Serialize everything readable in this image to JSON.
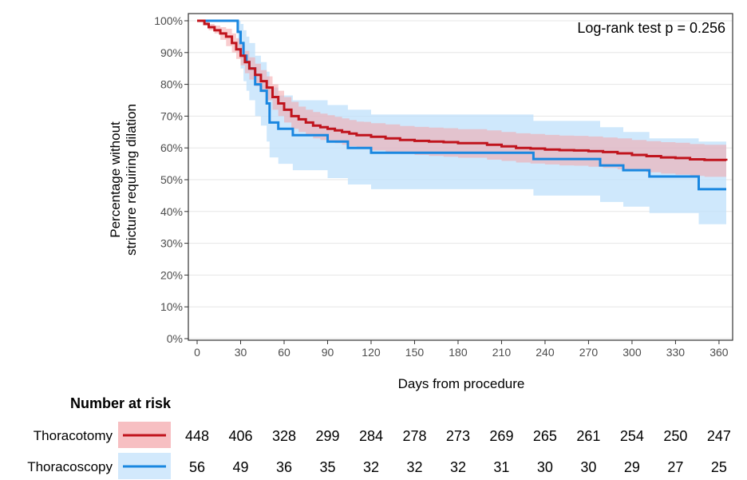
{
  "chart_data": {
    "type": "line",
    "subtype": "kaplan-meier",
    "xlabel": "Days from procedure",
    "ylabel_lines": [
      "Percentage without",
      "stricture requiring dilation"
    ],
    "annotation": "Log-rank test p = 0.256",
    "x_ticks": [
      "0",
      "30",
      "60",
      "90",
      "120",
      "150",
      "180",
      "210",
      "240",
      "270",
      "300",
      "330",
      "360"
    ],
    "y_ticks": [
      "0%",
      "10%",
      "20%",
      "30%",
      "40%",
      "50%",
      "60%",
      "70%",
      "80%",
      "90%",
      "100%"
    ],
    "xlim": [
      0,
      365
    ],
    "ylim": [
      0,
      100
    ],
    "grid": true,
    "series": [
      {
        "name": "Thoracotomy",
        "color": "#c0141d",
        "band_color": "#f4a4a8",
        "x": [
          0,
          5,
          8,
          12,
          16,
          20,
          24,
          27,
          30,
          33,
          36,
          40,
          44,
          48,
          52,
          56,
          60,
          65,
          70,
          75,
          80,
          85,
          90,
          95,
          100,
          105,
          110,
          115,
          120,
          130,
          140,
          150,
          160,
          170,
          180,
          200,
          210,
          220,
          230,
          240,
          250,
          260,
          270,
          280,
          290,
          300,
          310,
          320,
          330,
          340,
          350,
          365
        ],
        "y": [
          100,
          99,
          98,
          97,
          96,
          95,
          93,
          91,
          89,
          87,
          85,
          83,
          81,
          79,
          76,
          74,
          72,
          70,
          69,
          68,
          67,
          66.5,
          66,
          65.5,
          65,
          64.5,
          64,
          64,
          63.5,
          63,
          62.5,
          62.2,
          62,
          61.8,
          61.5,
          61,
          60.5,
          60,
          59.8,
          59.5,
          59.3,
          59.2,
          59,
          58.7,
          58.3,
          57.8,
          57.4,
          57,
          56.8,
          56.4,
          56.2,
          56
        ],
        "lower": [
          100,
          99,
          97,
          96,
          94,
          92,
          90,
          88,
          86,
          83.5,
          81.5,
          79.5,
          77.5,
          75,
          72,
          70,
          68,
          66,
          65,
          64,
          63,
          62.5,
          62,
          61.5,
          61,
          60.5,
          60,
          59.8,
          59.2,
          58.6,
          58.1,
          57.8,
          57.5,
          57.2,
          56.9,
          56.3,
          55.9,
          55.4,
          55.1,
          54.8,
          54.5,
          54.4,
          54.1,
          53.7,
          53.3,
          52.8,
          52.3,
          51.9,
          51.6,
          51.2,
          50.9,
          50.7
        ],
        "upper": [
          100,
          100,
          99,
          98.5,
          98,
          97.5,
          96,
          94.5,
          92.5,
          90.5,
          88.5,
          86.5,
          84.5,
          82.5,
          80,
          78,
          76,
          74.5,
          73,
          72,
          71.3,
          70.8,
          70.3,
          69.8,
          69.3,
          68.8,
          68.3,
          68.2,
          67.8,
          67.4,
          66.9,
          66.6,
          66.4,
          66.2,
          65.9,
          65.5,
          65,
          64.6,
          64.4,
          64.1,
          63.9,
          63.8,
          63.6,
          63.3,
          63,
          62.5,
          62.1,
          61.8,
          61.6,
          61.2,
          61,
          60.8
        ],
        "at_risk": [
          448,
          406,
          328,
          299,
          284,
          278,
          273,
          269,
          265,
          261,
          254,
          250,
          247
        ]
      },
      {
        "name": "Thoracoscopy",
        "color": "#1a87e0",
        "band_color": "#bfe0fb",
        "x": [
          0,
          18,
          28,
          30,
          32,
          34,
          36,
          40,
          44,
          48,
          50,
          56,
          66,
          90,
          104,
          120,
          210,
          232,
          278,
          294,
          312,
          346,
          365
        ],
        "y": [
          100,
          100,
          96.5,
          93,
          89,
          87,
          85,
          80,
          78,
          74,
          68,
          66,
          64,
          62,
          60,
          58.5,
          58.5,
          56.5,
          54.5,
          53,
          51,
          47,
          47
        ],
        "lower": [
          100,
          100,
          90,
          85,
          81,
          78,
          75,
          70,
          67,
          62,
          57,
          55,
          53,
          50.5,
          48.5,
          47,
          47,
          45,
          43,
          41.5,
          39.5,
          36,
          36
        ],
        "upper": [
          100,
          100,
          100,
          99,
          97,
          95,
          93,
          89,
          87,
          84,
          79,
          76.5,
          75,
          73.5,
          72,
          70.5,
          70.5,
          68.5,
          66.5,
          65,
          63,
          62,
          62
        ],
        "at_risk": [
          56,
          49,
          36,
          35,
          32,
          32,
          32,
          31,
          30,
          30,
          29,
          27,
          25
        ]
      }
    ],
    "risk_table": {
      "title": "Number at risk"
    }
  }
}
